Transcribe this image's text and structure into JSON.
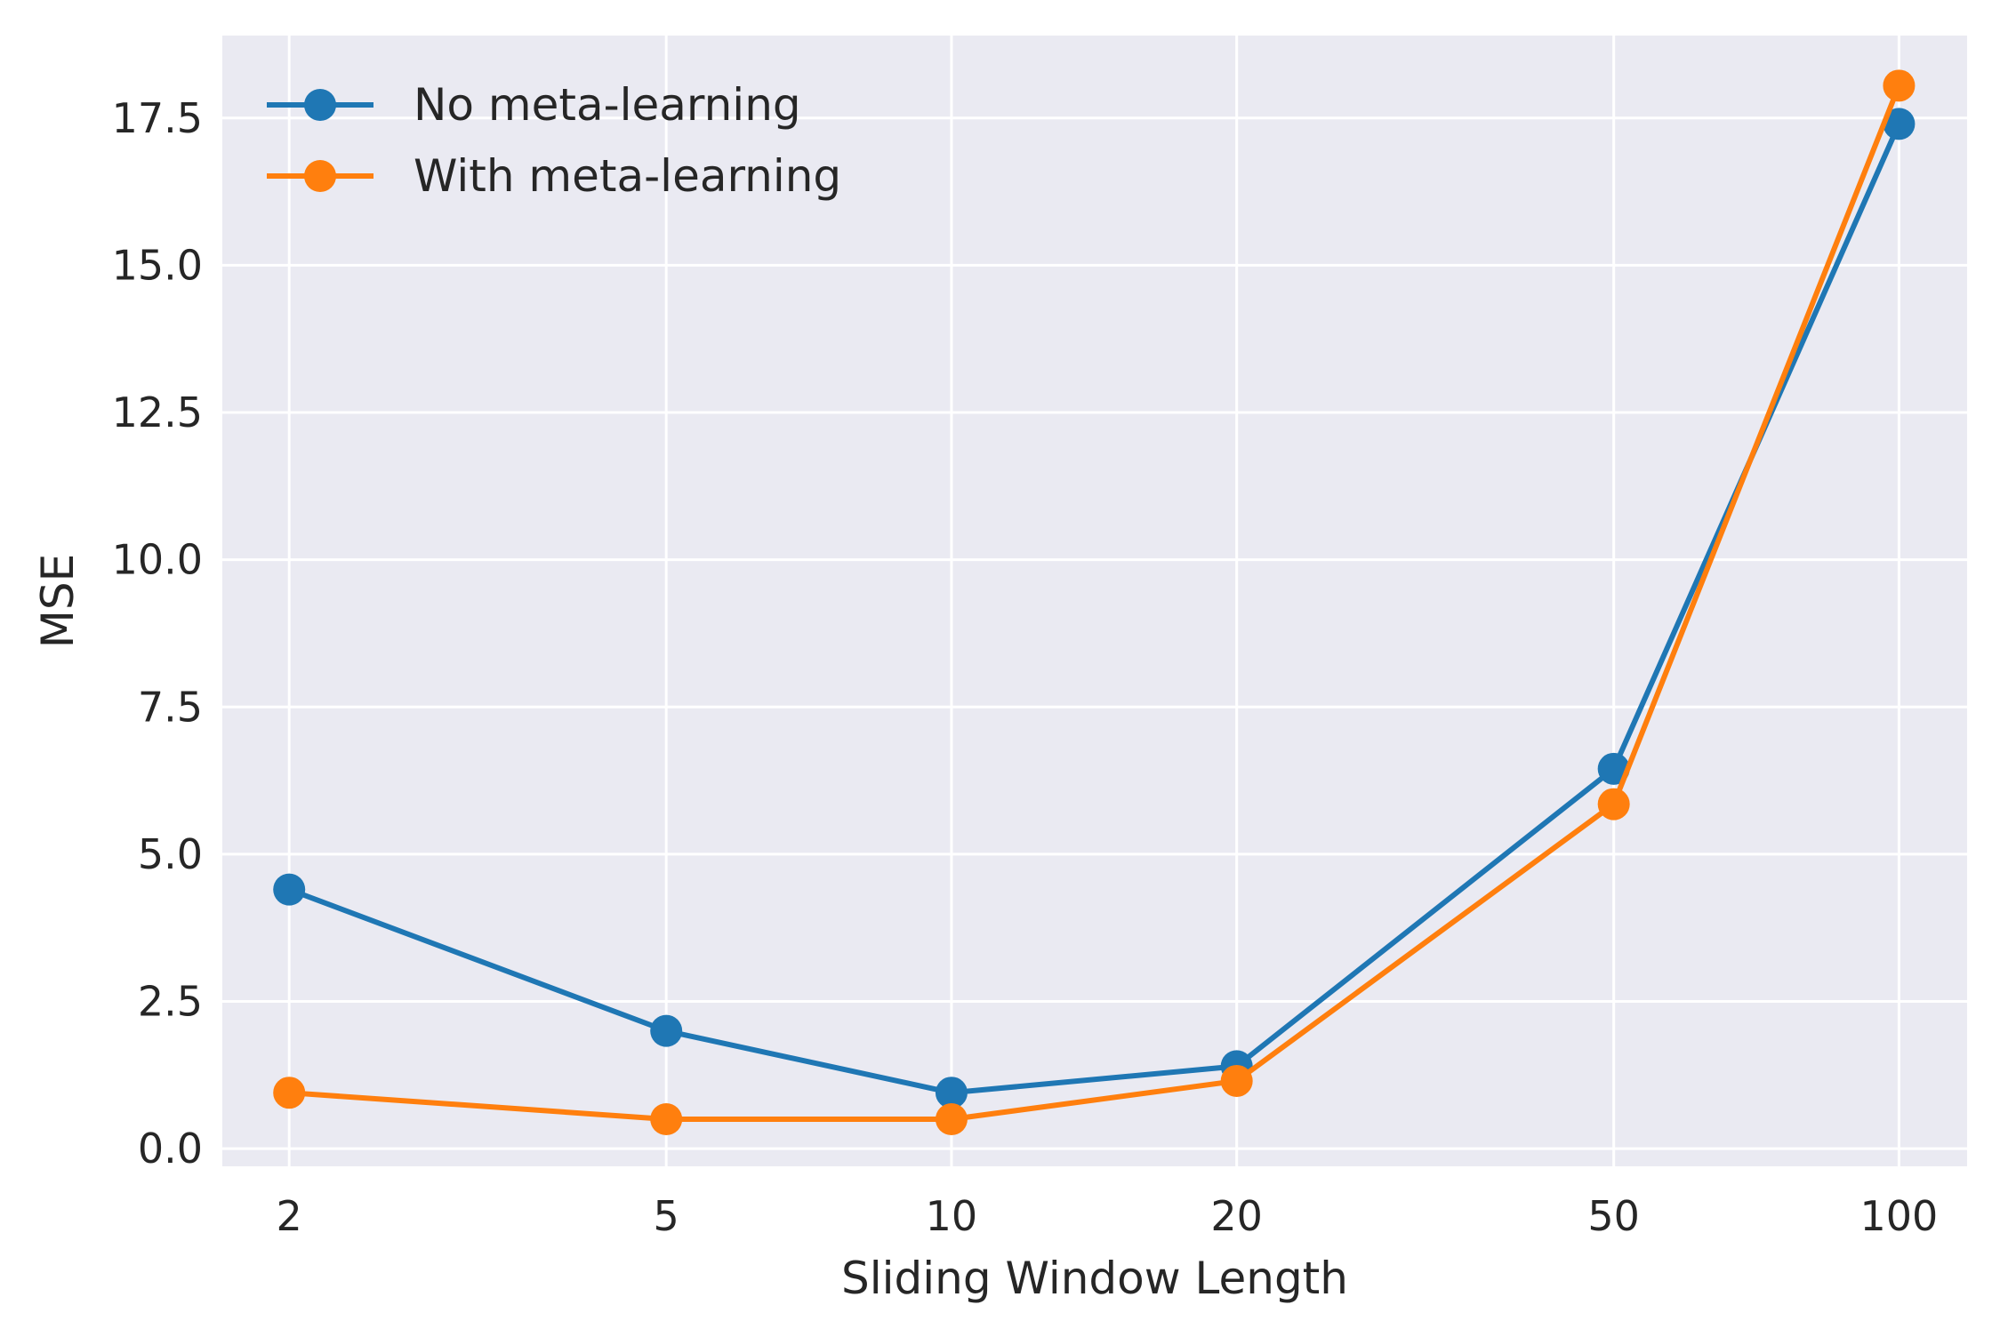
{
  "chart_data": {
    "type": "line",
    "title": "",
    "xlabel": "Sliding Window Length",
    "ylabel": "MSE",
    "x_scale": "log",
    "x": [
      2,
      5,
      10,
      20,
      50,
      100
    ],
    "x_tick_labels": [
      "2",
      "5",
      "10",
      "20",
      "50",
      "100"
    ],
    "y_ticks": [
      0.0,
      2.5,
      5.0,
      7.5,
      10.0,
      12.5,
      15.0,
      17.5
    ],
    "y_tick_labels": [
      "0.0",
      "2.5",
      "5.0",
      "7.5",
      "10.0",
      "12.5",
      "15.0",
      "17.5"
    ],
    "ylim": [
      -0.3,
      18.9
    ],
    "xlim": [
      1.7,
      118
    ],
    "grid": true,
    "legend_position": "top-left",
    "series": [
      {
        "name": "No meta-learning",
        "color": "#1f77b4",
        "values": [
          4.4,
          2.0,
          0.95,
          1.4,
          6.45,
          17.4
        ]
      },
      {
        "name": "With meta-learning",
        "color": "#ff7f0e",
        "values": [
          0.95,
          0.5,
          0.5,
          1.15,
          5.85,
          18.05
        ]
      }
    ],
    "background_color": "#eaeaf2",
    "grid_color": "#ffffff"
  }
}
